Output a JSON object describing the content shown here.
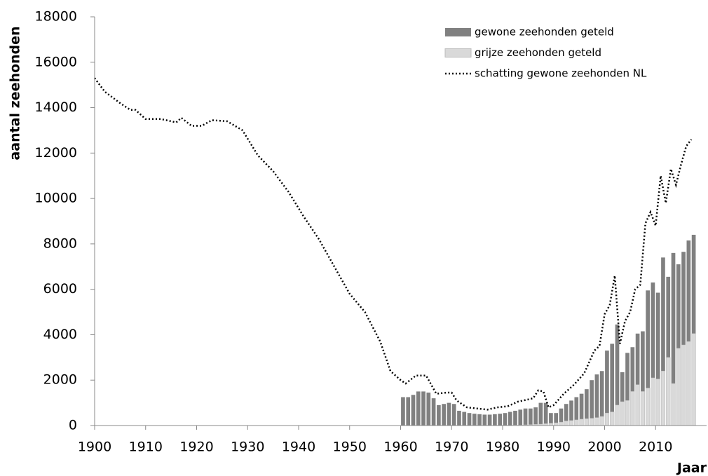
{
  "chart_data": {
    "type": "bar",
    "y_label": "aantal zeehonden",
    "x_label": "Jaar",
    "xlim": [
      1900,
      2020
    ],
    "xticks": [
      1900,
      1910,
      1920,
      1930,
      1940,
      1950,
      1960,
      1970,
      1980,
      1990,
      2000,
      2010
    ],
    "ylim": [
      0,
      18000
    ],
    "yticks": [
      0,
      2000,
      4000,
      6000,
      8000,
      10000,
      12000,
      14000,
      16000,
      18000
    ],
    "legend": "top-right",
    "x": [
      1960,
      1961,
      1962,
      1963,
      1964,
      1965,
      1966,
      1967,
      1968,
      1969,
      1970,
      1971,
      1972,
      1973,
      1974,
      1975,
      1976,
      1977,
      1978,
      1979,
      1980,
      1981,
      1982,
      1983,
      1984,
      1985,
      1986,
      1987,
      1988,
      1989,
      1990,
      1991,
      1992,
      1993,
      1994,
      1995,
      1996,
      1997,
      1998,
      1999,
      2000,
      2001,
      2002,
      2003,
      2004,
      2005,
      2006,
      2007,
      2008,
      2009,
      2010,
      2011,
      2012,
      2013,
      2014,
      2015,
      2016,
      2017
    ],
    "series": [
      {
        "name": "gewone zeehonden geteld",
        "type": "bar",
        "color": "#808080",
        "values": [
          1250,
          1250,
          1350,
          1500,
          1500,
          1450,
          1200,
          900,
          950,
          1000,
          950,
          650,
          600,
          550,
          520,
          500,
          480,
          480,
          500,
          520,
          550,
          600,
          650,
          700,
          750,
          750,
          800,
          1000,
          1000,
          550,
          550,
          750,
          950,
          1100,
          1250,
          1400,
          1600,
          2000,
          2250,
          2400,
          3300,
          3600,
          4450,
          2350,
          3200,
          3450,
          4050,
          4150,
          5950,
          6300,
          5850,
          7400,
          6550,
          7600,
          7100,
          7650,
          8150,
          8400
        ]
      },
      {
        "name": "grijze zeehonden geteld",
        "type": "bar",
        "color": "#d9d9d9",
        "values": [
          0,
          0,
          0,
          0,
          0,
          0,
          0,
          0,
          0,
          0,
          0,
          0,
          0,
          0,
          0,
          0,
          0,
          0,
          0,
          0,
          10,
          10,
          20,
          20,
          30,
          40,
          50,
          60,
          80,
          100,
          120,
          150,
          200,
          220,
          250,
          280,
          300,
          320,
          350,
          400,
          550,
          600,
          900,
          1050,
          1100,
          1500,
          1800,
          1500,
          1650,
          2100,
          2050,
          2400,
          3000,
          1850,
          3400,
          3550,
          3700,
          4050
        ]
      },
      {
        "name": "schatting gewone zeehonden NL",
        "type": "line",
        "color": "#000000",
        "x": [
          1900,
          1902,
          1905,
          1907,
          1908,
          1910,
          1913,
          1916,
          1917,
          1919,
          1921,
          1923,
          1926,
          1929,
          1932,
          1935,
          1938,
          1941,
          1944,
          1947,
          1950,
          1953,
          1956,
          1958,
          1960,
          1961,
          1963,
          1965,
          1967,
          1969,
          1970,
          1971,
          1973,
          1975,
          1977,
          1979,
          1981,
          1983,
          1985,
          1986,
          1987,
          1988,
          1989,
          1990,
          1992,
          1994,
          1996,
          1998,
          1999,
          2000,
          2001,
          2002,
          2003,
          2004,
          2005,
          2006,
          2007,
          2008,
          2009,
          2010,
          2011,
          2012,
          2013,
          2014,
          2015,
          2016,
          2017
        ],
        "values": [
          15300,
          14700,
          14200,
          13900,
          13900,
          13500,
          13500,
          13350,
          13550,
          13200,
          13200,
          13450,
          13400,
          13000,
          11900,
          11200,
          10300,
          9200,
          8200,
          7000,
          5800,
          5000,
          3700,
          2400,
          2000,
          1850,
          2200,
          2200,
          1400,
          1450,
          1450,
          1100,
          800,
          750,
          700,
          800,
          850,
          1050,
          1150,
          1200,
          1550,
          1500,
          800,
          900,
          1400,
          1800,
          2300,
          3300,
          3500,
          4900,
          5300,
          6600,
          3600,
          4600,
          5000,
          6000,
          6200,
          8900,
          9400,
          8800,
          11000,
          9800,
          11300,
          10600,
          11500,
          12300,
          12600
        ]
      }
    ]
  }
}
